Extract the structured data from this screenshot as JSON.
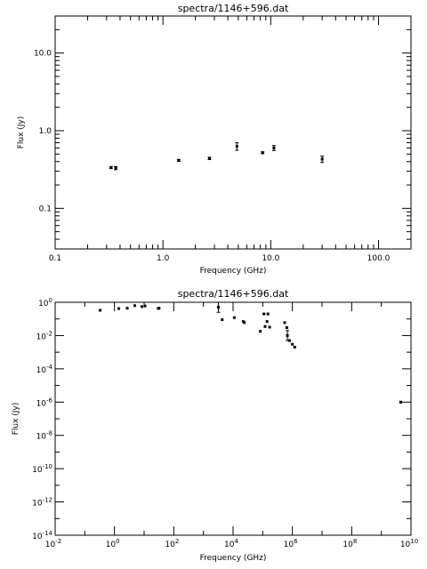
{
  "chart_data": [
    {
      "type": "scatter",
      "title": "spectra/1146+596.dat",
      "xlabel": "Frequency (GHz)",
      "ylabel": "Flux (Jy)",
      "xscale": "log",
      "yscale": "log",
      "xlim": [
        0.1,
        200
      ],
      "ylim": [
        0.03,
        30
      ],
      "xticks": [
        0.1,
        1,
        10,
        100
      ],
      "xtick_labels": [
        "0.1",
        "1.0",
        "10.0",
        "100.0"
      ],
      "yticks": [
        0.1,
        1,
        10
      ],
      "ytick_labels": [
        "0.1",
        "1.0",
        "10.0"
      ],
      "grid": false,
      "points": [
        {
          "x": 0.33,
          "y": 0.335,
          "yerr": 0.01
        },
        {
          "x": 0.365,
          "y": 0.33,
          "yerr": 0.015
        },
        {
          "x": 1.4,
          "y": 0.415,
          "yerr": 0.01
        },
        {
          "x": 2.7,
          "y": 0.44,
          "yerr": 0.015
        },
        {
          "x": 4.85,
          "y": 0.63,
          "yerr": 0.07
        },
        {
          "x": 8.4,
          "y": 0.52,
          "yerr": 0.015
        },
        {
          "x": 10.7,
          "y": 0.6,
          "yerr": 0.045
        },
        {
          "x": 30,
          "y": 0.43,
          "yerr": 0.04
        }
      ]
    },
    {
      "type": "scatter",
      "title": "spectra/1146+596.dat",
      "xlabel": "Frequency (GHz)",
      "ylabel": "Flux (Jy)",
      "xscale": "log",
      "yscale": "log",
      "xlim": [
        0.01,
        10000000000
      ],
      "ylim": [
        1e-14,
        1
      ],
      "xticks": [
        0.01,
        1,
        100,
        10000,
        1000000,
        100000000,
        10000000000
      ],
      "xtick_labels": [
        {
          "base": "10",
          "exp": "-2"
        },
        {
          "base": "10",
          "exp": "0"
        },
        {
          "base": "10",
          "exp": "2"
        },
        {
          "base": "10",
          "exp": "4"
        },
        {
          "base": "10",
          "exp": "6"
        },
        {
          "base": "10",
          "exp": "8"
        },
        {
          "base": "10",
          "exp": "10"
        }
      ],
      "yticks": [
        1e-14,
        1e-12,
        1e-10,
        1e-08,
        1e-06,
        0.0001,
        0.01,
        1
      ],
      "ytick_labels": [
        {
          "base": "10",
          "exp": "-14"
        },
        {
          "base": "10",
          "exp": "-12"
        },
        {
          "base": "10",
          "exp": "-10"
        },
        {
          "base": "10",
          "exp": "-8"
        },
        {
          "base": "10",
          "exp": "-6"
        },
        {
          "base": "10",
          "exp": "-4"
        },
        {
          "base": "10",
          "exp": "-2"
        },
        {
          "base": "10",
          "exp": "0"
        }
      ],
      "grid": false,
      "points": [
        {
          "x": 0.33,
          "y": 0.33
        },
        {
          "x": 1.4,
          "y": 0.42
        },
        {
          "x": 2.7,
          "y": 0.44
        },
        {
          "x": 4.85,
          "y": 0.63
        },
        {
          "x": 8.4,
          "y": 0.55
        },
        {
          "x": 10.7,
          "y": 0.6
        },
        {
          "x": 30,
          "y": 0.43
        },
        {
          "x": 32,
          "y": 0.44
        },
        {
          "x": 3200,
          "y": 0.5,
          "yerr_factor": 2
        },
        {
          "x": 4300,
          "y": 0.09
        },
        {
          "x": 11000,
          "y": 0.12
        },
        {
          "x": 22000,
          "y": 0.07
        },
        {
          "x": 24000,
          "y": 0.06
        },
        {
          "x": 83000,
          "y": 0.018
        },
        {
          "x": 110000,
          "y": 0.2
        },
        {
          "x": 120000,
          "y": 0.035
        },
        {
          "x": 140000,
          "y": 0.07
        },
        {
          "x": 150000,
          "y": 0.2
        },
        {
          "x": 170000,
          "y": 0.032
        },
        {
          "x": 550000,
          "y": 0.06
        },
        {
          "x": 650000,
          "y": 0.03
        },
        {
          "x": 680000,
          "y": 0.01,
          "yerr_factor": 2
        },
        {
          "x": 800000,
          "y": 0.005
        },
        {
          "x": 1000000,
          "y": 0.003
        },
        {
          "x": 1200000,
          "y": 0.002
        },
        {
          "x": 4500000000,
          "y": 1e-06
        }
      ]
    }
  ]
}
